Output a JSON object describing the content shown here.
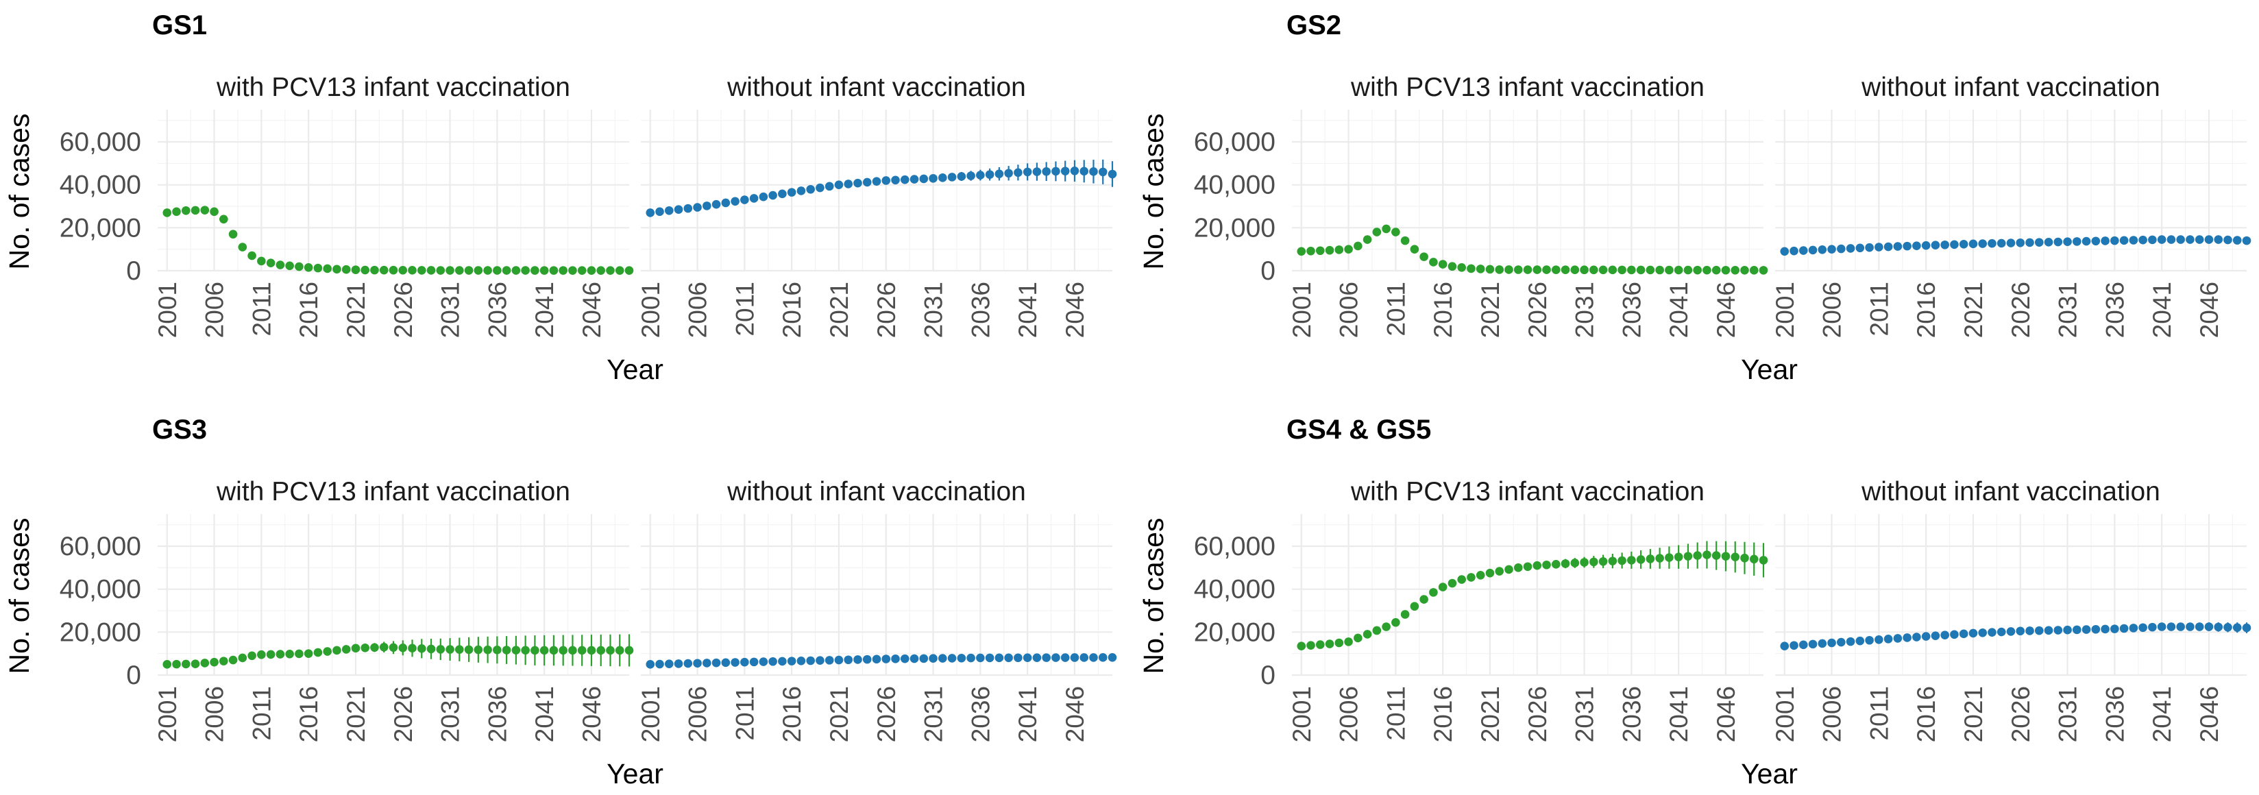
{
  "figure": {
    "x_axis_label": "Year",
    "y_axis_label": "No. of cases",
    "facet_labels": [
      "with PCV13 infant vaccination",
      "without infant vaccination"
    ],
    "series_colors": {
      "with": "#2ca02c",
      "without": "#1f77b4"
    }
  },
  "chart_data": [
    {
      "type": "scatter",
      "title": "GS1",
      "xlabel": "Year",
      "ylabel": "No. of cases",
      "ylim": [
        0,
        75000
      ],
      "yticks": [
        "0",
        "20,000",
        "40,000",
        "60,000"
      ],
      "ytick_values": [
        0,
        20000,
        40000,
        60000
      ],
      "xticks": [
        "2001",
        "2006",
        "2011",
        "2016",
        "2021",
        "2026",
        "2031",
        "2036",
        "2041",
        "2046"
      ],
      "xtick_values": [
        2001,
        2006,
        2011,
        2016,
        2021,
        2026,
        2031,
        2036,
        2041,
        2046
      ],
      "xlim": [
        2000,
        2050
      ],
      "panels": [
        {
          "facet": "with PCV13 infant vaccination",
          "color": "#2ca02c",
          "keypoints": [
            [
              2001,
              27000
            ],
            [
              2003,
              28000
            ],
            [
              2005,
              28200
            ],
            [
              2006,
              27500
            ],
            [
              2007,
              24000
            ],
            [
              2008,
              17000
            ],
            [
              2009,
              11000
            ],
            [
              2010,
              7000
            ],
            [
              2011,
              4500
            ],
            [
              2013,
              2700
            ],
            [
              2016,
              1500
            ],
            [
              2019,
              700
            ],
            [
              2022,
              300
            ],
            [
              2030,
              150
            ],
            [
              2050,
              100
            ]
          ],
          "error": [
            [
              2001,
              300
            ],
            [
              2050,
              300
            ]
          ]
        },
        {
          "facet": "without infant vaccination",
          "color": "#1f77b4",
          "keypoints": [
            [
              2001,
              27000
            ],
            [
              2006,
              29500
            ],
            [
              2011,
              33000
            ],
            [
              2016,
              36500
            ],
            [
              2021,
              40000
            ],
            [
              2026,
              42000
            ],
            [
              2031,
              43000
            ],
            [
              2036,
              44500
            ],
            [
              2041,
              46000
            ],
            [
              2046,
              46500
            ],
            [
              2049,
              46000
            ],
            [
              2050,
              45000
            ]
          ],
          "error": [
            [
              2001,
              700
            ],
            [
              2030,
              1200
            ],
            [
              2036,
              2500
            ],
            [
              2041,
              4000
            ],
            [
              2046,
              5000
            ],
            [
              2050,
              6000
            ]
          ]
        }
      ]
    },
    {
      "type": "scatter",
      "title": "GS2",
      "xlabel": "Year",
      "ylabel": "No. of cases",
      "ylim": [
        0,
        75000
      ],
      "yticks": [
        "0",
        "20,000",
        "40,000",
        "60,000"
      ],
      "ytick_values": [
        0,
        20000,
        40000,
        60000
      ],
      "xticks": [
        "2001",
        "2006",
        "2011",
        "2016",
        "2021",
        "2026",
        "2031",
        "2036",
        "2041",
        "2046"
      ],
      "xtick_values": [
        2001,
        2006,
        2011,
        2016,
        2021,
        2026,
        2031,
        2036,
        2041,
        2046
      ],
      "xlim": [
        2000,
        2050
      ],
      "panels": [
        {
          "facet": "with PCV13 infant vaccination",
          "color": "#2ca02c",
          "keypoints": [
            [
              2001,
              9000
            ],
            [
              2004,
              9500
            ],
            [
              2006,
              10000
            ],
            [
              2007,
              11500
            ],
            [
              2008,
              14500
            ],
            [
              2009,
              18000
            ],
            [
              2010,
              19500
            ],
            [
              2011,
              18000
            ],
            [
              2012,
              14000
            ],
            [
              2013,
              10000
            ],
            [
              2014,
              6500
            ],
            [
              2015,
              4000
            ],
            [
              2017,
              2000
            ],
            [
              2019,
              1000
            ],
            [
              2022,
              500
            ],
            [
              2050,
              200
            ]
          ],
          "error": [
            [
              2001,
              300
            ],
            [
              2050,
              300
            ]
          ]
        },
        {
          "facet": "without infant vaccination",
          "color": "#1f77b4",
          "keypoints": [
            [
              2001,
              9000
            ],
            [
              2011,
              11000
            ],
            [
              2021,
              12500
            ],
            [
              2031,
              13500
            ],
            [
              2041,
              14500
            ],
            [
              2047,
              14500
            ],
            [
              2050,
              14000
            ]
          ],
          "error": [
            [
              2001,
              300
            ],
            [
              2036,
              800
            ],
            [
              2050,
              1500
            ]
          ]
        }
      ]
    },
    {
      "type": "scatter",
      "title": "GS3",
      "xlabel": "Year",
      "ylabel": "No. of cases",
      "ylim": [
        0,
        75000
      ],
      "yticks": [
        "0",
        "20,000",
        "40,000",
        "60,000"
      ],
      "ytick_values": [
        0,
        20000,
        40000,
        60000
      ],
      "xticks": [
        "2001",
        "2006",
        "2011",
        "2016",
        "2021",
        "2026",
        "2031",
        "2036",
        "2041",
        "2046"
      ],
      "xtick_values": [
        2001,
        2006,
        2011,
        2016,
        2021,
        2026,
        2031,
        2036,
        2041,
        2046
      ],
      "xlim": [
        2000,
        2050
      ],
      "panels": [
        {
          "facet": "with PCV13 infant vaccination",
          "color": "#2ca02c",
          "keypoints": [
            [
              2001,
              5000
            ],
            [
              2004,
              5200
            ],
            [
              2006,
              6000
            ],
            [
              2008,
              7000
            ],
            [
              2010,
              9000
            ],
            [
              2011,
              9500
            ],
            [
              2016,
              10000
            ],
            [
              2021,
              12500
            ],
            [
              2024,
              13000
            ],
            [
              2030,
              12000
            ],
            [
              2040,
              11500
            ],
            [
              2050,
              11500
            ]
          ],
          "error": [
            [
              2001,
              300
            ],
            [
              2020,
              800
            ],
            [
              2024,
              2500
            ],
            [
              2028,
              4500
            ],
            [
              2034,
              6000
            ],
            [
              2040,
              7000
            ],
            [
              2050,
              7500
            ]
          ]
        },
        {
          "facet": "without infant vaccination",
          "color": "#1f77b4",
          "keypoints": [
            [
              2001,
              5000
            ],
            [
              2006,
              5500
            ],
            [
              2011,
              6000
            ],
            [
              2016,
              6500
            ],
            [
              2021,
              7000
            ],
            [
              2026,
              7500
            ],
            [
              2036,
              8000
            ],
            [
              2050,
              8200
            ]
          ],
          "error": [
            [
              2001,
              300
            ],
            [
              2050,
              600
            ]
          ]
        }
      ]
    },
    {
      "type": "scatter",
      "title": "GS4 & GS5",
      "xlabel": "Year",
      "ylabel": "No. of cases",
      "ylim": [
        0,
        75000
      ],
      "yticks": [
        "0",
        "20,000",
        "40,000",
        "60,000"
      ],
      "ytick_values": [
        0,
        20000,
        40000,
        60000
      ],
      "xticks": [
        "2001",
        "2006",
        "2011",
        "2016",
        "2021",
        "2026",
        "2031",
        "2036",
        "2041",
        "2046"
      ],
      "xtick_values": [
        2001,
        2006,
        2011,
        2016,
        2021,
        2026,
        2031,
        2036,
        2041,
        2046
      ],
      "xlim": [
        2000,
        2050
      ],
      "panels": [
        {
          "facet": "with PCV13 infant vaccination",
          "color": "#2ca02c",
          "keypoints": [
            [
              2001,
              13500
            ],
            [
              2004,
              14500
            ],
            [
              2006,
              15500
            ],
            [
              2008,
              19000
            ],
            [
              2010,
              22500
            ],
            [
              2011,
              24500
            ],
            [
              2013,
              32000
            ],
            [
              2015,
              38500
            ],
            [
              2016,
              41000
            ],
            [
              2018,
              44500
            ],
            [
              2021,
              47500
            ],
            [
              2024,
              50000
            ],
            [
              2026,
              51000
            ],
            [
              2031,
              52500
            ],
            [
              2036,
              53500
            ],
            [
              2041,
              55000
            ],
            [
              2044,
              56000
            ],
            [
              2047,
              55000
            ],
            [
              2050,
              53500
            ]
          ],
          "error": [
            [
              2001,
              400
            ],
            [
              2025,
              1500
            ],
            [
              2031,
              2500
            ],
            [
              2036,
              4000
            ],
            [
              2041,
              5500
            ],
            [
              2046,
              7000
            ],
            [
              2050,
              8000
            ]
          ]
        },
        {
          "facet": "without infant vaccination",
          "color": "#1f77b4",
          "keypoints": [
            [
              2001,
              13500
            ],
            [
              2006,
              15000
            ],
            [
              2011,
              16500
            ],
            [
              2016,
              18000
            ],
            [
              2021,
              19500
            ],
            [
              2026,
              20500
            ],
            [
              2031,
              21000
            ],
            [
              2036,
              21500
            ],
            [
              2041,
              22500
            ],
            [
              2046,
              22500
            ],
            [
              2050,
              22000
            ]
          ],
          "error": [
            [
              2001,
              300
            ],
            [
              2036,
              800
            ],
            [
              2041,
              1500
            ],
            [
              2050,
              2500
            ]
          ]
        }
      ]
    }
  ]
}
